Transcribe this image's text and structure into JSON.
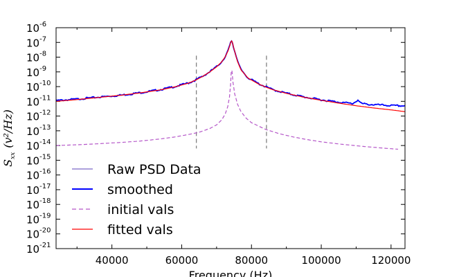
{
  "chart_data": {
    "type": "line",
    "title": "",
    "xlabel": "Frequency (Hz)",
    "ylabel": {
      "symbol": "S",
      "subscript": "xx",
      "units": "(v²/Hz)"
    },
    "xlim": [
      24000,
      124000
    ],
    "ylim_exponents": [
      -21,
      -6
    ],
    "yscale": "log",
    "x_ticks": [
      {
        "value": 40000,
        "label": "40000"
      },
      {
        "value": 60000,
        "label": "60000"
      },
      {
        "value": 80000,
        "label": "80000"
      },
      {
        "value": 100000,
        "label": "100000"
      },
      {
        "value": 120000,
        "label": "120000"
      }
    ],
    "y_ticks": [
      {
        "exp": -6,
        "label": "10",
        "sup": "-6"
      },
      {
        "exp": -7,
        "label": "10",
        "sup": "-7"
      },
      {
        "exp": -8,
        "label": "10",
        "sup": "-8"
      },
      {
        "exp": -9,
        "label": "10",
        "sup": "-9"
      },
      {
        "exp": -10,
        "label": "10",
        "sup": "-10"
      },
      {
        "exp": -11,
        "label": "10",
        "sup": "-11"
      },
      {
        "exp": -12,
        "label": "10",
        "sup": "-12"
      },
      {
        "exp": -13,
        "label": "10",
        "sup": "-13"
      },
      {
        "exp": -14,
        "label": "10",
        "sup": "-14"
      },
      {
        "exp": -15,
        "label": "10",
        "sup": "-15"
      },
      {
        "exp": -16,
        "label": "10",
        "sup": "-16"
      },
      {
        "exp": -17,
        "label": "10",
        "sup": "-17"
      },
      {
        "exp": -18,
        "label": "10",
        "sup": "-18"
      },
      {
        "exp": -19,
        "label": "10",
        "sup": "-19"
      },
      {
        "exp": -20,
        "label": "10",
        "sup": "-20"
      },
      {
        "exp": -21,
        "label": "10",
        "sup": "-21"
      }
    ],
    "grid": false,
    "legend": {
      "position": "lower-left",
      "entries": [
        {
          "name": "Raw PSD Data",
          "color": "#7b68c8",
          "style": "solid"
        },
        {
          "name": "smoothed",
          "color": "#0000ff",
          "style": "solid"
        },
        {
          "name": "initial vals",
          "color": "#b455c8",
          "style": "dashed"
        },
        {
          "name": "fitted vals",
          "color": "#ff0000",
          "style": "solid"
        }
      ]
    },
    "vertical_lines": {
      "x": [
        64200,
        84300
      ],
      "y_exp_range": [
        -14.2,
        -7.9
      ],
      "color": "#808080",
      "style": "dashed"
    },
    "series": [
      {
        "name": "smoothed",
        "color": "#0000ff",
        "x": [
          24000,
          30000,
          36000,
          42000,
          48000,
          54000,
          58000,
          62000,
          64000,
          66000,
          68000,
          70000,
          71500,
          72500,
          73300,
          73800,
          74100,
          74300,
          74500,
          74800,
          75300,
          76000,
          77000,
          79000,
          82000,
          84000,
          86000,
          90000,
          95000,
          100000,
          105000,
          109000,
          110500,
          111500,
          113000,
          117000,
          121000,
          124000
        ],
        "y_exp": [
          -10.95,
          -10.85,
          -10.72,
          -10.6,
          -10.42,
          -10.2,
          -10.0,
          -9.75,
          -9.55,
          -9.3,
          -9.0,
          -8.65,
          -8.3,
          -7.95,
          -7.55,
          -7.2,
          -6.95,
          -6.9,
          -6.97,
          -7.25,
          -7.7,
          -8.3,
          -8.85,
          -9.4,
          -9.8,
          -10.0,
          -10.2,
          -10.45,
          -10.7,
          -10.9,
          -11.05,
          -11.15,
          -10.92,
          -11.15,
          -11.2,
          -11.25,
          -11.3,
          -11.3
        ]
      },
      {
        "name": "fitted vals",
        "color": "#ff0000",
        "x": [
          24000,
          30000,
          36000,
          42000,
          48000,
          54000,
          58000,
          62000,
          64000,
          66000,
          68000,
          70000,
          71500,
          72500,
          73300,
          73800,
          74100,
          74300,
          74500,
          74800,
          75300,
          76000,
          77000,
          79000,
          82000,
          84000,
          86000,
          90000,
          95000,
          100000,
          105000,
          110000,
          115000,
          120000,
          124000
        ],
        "y_exp": [
          -11.0,
          -10.88,
          -10.74,
          -10.6,
          -10.43,
          -10.22,
          -10.02,
          -9.76,
          -9.56,
          -9.31,
          -9.01,
          -8.66,
          -8.31,
          -7.96,
          -7.56,
          -7.21,
          -6.96,
          -6.9,
          -6.97,
          -7.26,
          -7.71,
          -8.3,
          -8.86,
          -9.42,
          -9.82,
          -10.02,
          -10.2,
          -10.46,
          -10.72,
          -10.93,
          -11.12,
          -11.3,
          -11.45,
          -11.58,
          -11.7
        ]
      },
      {
        "name": "initial vals",
        "color": "#b455c8",
        "x": [
          24000,
          30000,
          36000,
          42000,
          48000,
          54000,
          58000,
          62000,
          65000,
          68000,
          70000,
          71500,
          72500,
          73200,
          73700,
          74000,
          74200,
          74400,
          74700,
          75200,
          76000,
          77000,
          78500,
          80000,
          84000,
          88000,
          92000,
          96000,
          100000,
          106000,
          112000,
          118000,
          122000
        ],
        "y_exp": [
          -14.0,
          -13.95,
          -13.88,
          -13.8,
          -13.7,
          -13.55,
          -13.42,
          -13.25,
          -13.1,
          -12.85,
          -12.6,
          -12.25,
          -11.85,
          -11.35,
          -10.7,
          -9.9,
          -9.0,
          -8.9,
          -9.7,
          -10.5,
          -11.2,
          -11.7,
          -12.15,
          -12.45,
          -12.9,
          -13.2,
          -13.42,
          -13.6,
          -13.75,
          -13.92,
          -14.06,
          -14.18,
          -14.25
        ]
      }
    ]
  }
}
